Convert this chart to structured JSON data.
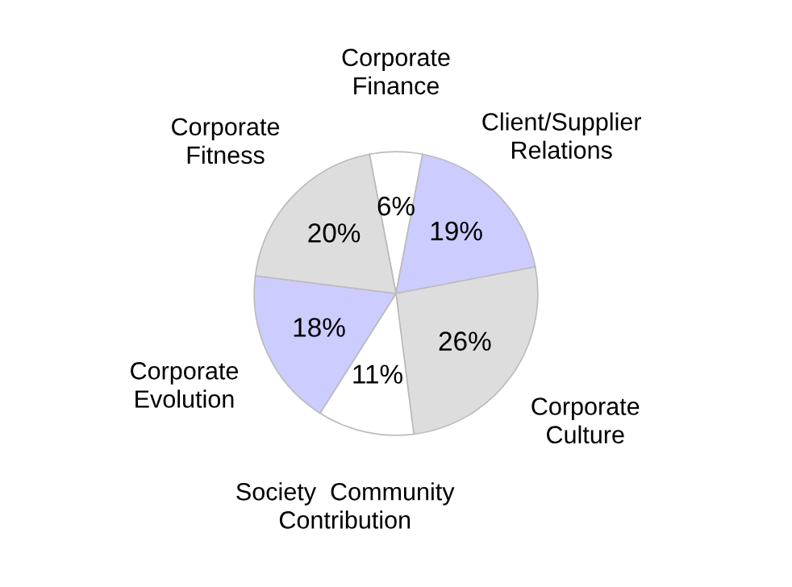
{
  "chart_data": {
    "type": "pie",
    "categories": [
      "Corporate\nFinance",
      "Client/Supplier\nRelations",
      "Corporate\nCulture",
      "Society  Community\nContribution",
      "Corporate\nEvolution",
      "Corporate\nFitness"
    ],
    "values": [
      6,
      19,
      26,
      11,
      18,
      20
    ],
    "value_labels": [
      "6%",
      "19%",
      "26%",
      "11%",
      "18%",
      "20%"
    ],
    "colors": [
      "#ffffff",
      "#ccccff",
      "#dddddd",
      "#ffffff",
      "#ccccff",
      "#dddddd"
    ],
    "legend": false
  }
}
